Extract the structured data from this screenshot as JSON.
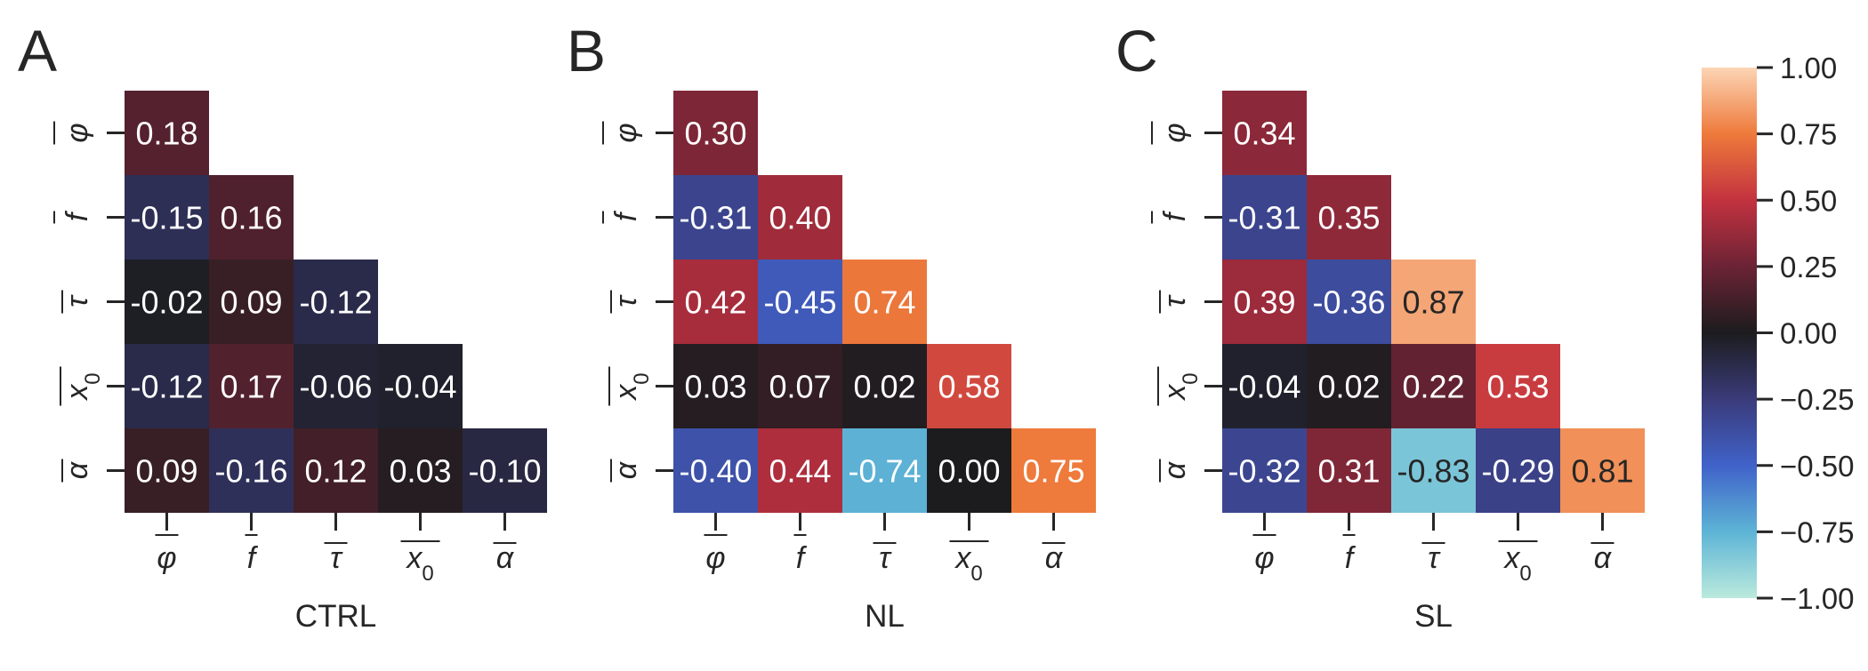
{
  "chart_data": {
    "type": "heatmap",
    "variables": [
      "φ",
      "f",
      "τ",
      "x0",
      "α"
    ],
    "colorbar": {
      "range": [
        -1.0,
        1.0
      ],
      "ticks": [
        "1.00",
        "0.75",
        "0.50",
        "0.25",
        "0.00",
        "−0.25",
        "−0.50",
        "−0.75",
        "−1.00"
      ],
      "tick_values": [
        1.0,
        0.75,
        0.5,
        0.25,
        0.0,
        -0.25,
        -0.5,
        -0.75,
        -1.0
      ],
      "colormap": "icefire",
      "color_stops": [
        {
          "v": -1.0,
          "c": "#bbeadd"
        },
        {
          "v": -0.75,
          "c": "#5db4d6"
        },
        {
          "v": -0.5,
          "c": "#4062c9"
        },
        {
          "v": -0.25,
          "c": "#3a3b7a"
        },
        {
          "v": 0.0,
          "c": "#1c1c1e"
        },
        {
          "v": 0.25,
          "c": "#6b2335"
        },
        {
          "v": 0.5,
          "c": "#c3323f"
        },
        {
          "v": 0.75,
          "c": "#ee7a3b"
        },
        {
          "v": 1.0,
          "c": "#fcd5b5"
        }
      ]
    },
    "panels": [
      {
        "letter": "A",
        "xlabel": "CTRL",
        "matrix": [
          [
            0.18
          ],
          [
            -0.15,
            0.16
          ],
          [
            -0.02,
            0.09,
            -0.12
          ],
          [
            -0.12,
            0.17,
            -0.06,
            -0.04
          ],
          [
            0.09,
            -0.16,
            0.12,
            0.03,
            -0.1
          ]
        ]
      },
      {
        "letter": "B",
        "xlabel": "NL",
        "matrix": [
          [
            0.3
          ],
          [
            -0.31,
            0.4
          ],
          [
            0.42,
            -0.45,
            0.74
          ],
          [
            0.03,
            0.07,
            0.02,
            0.58
          ],
          [
            -0.4,
            0.44,
            -0.74,
            0.0,
            0.75
          ]
        ]
      },
      {
        "letter": "C",
        "xlabel": "SL",
        "matrix": [
          [
            0.34
          ],
          [
            -0.31,
            0.35
          ],
          [
            0.39,
            -0.36,
            0.87
          ],
          [
            -0.04,
            0.02,
            0.22,
            0.53
          ],
          [
            -0.32,
            0.31,
            -0.83,
            -0.29,
            0.81
          ]
        ]
      }
    ]
  }
}
